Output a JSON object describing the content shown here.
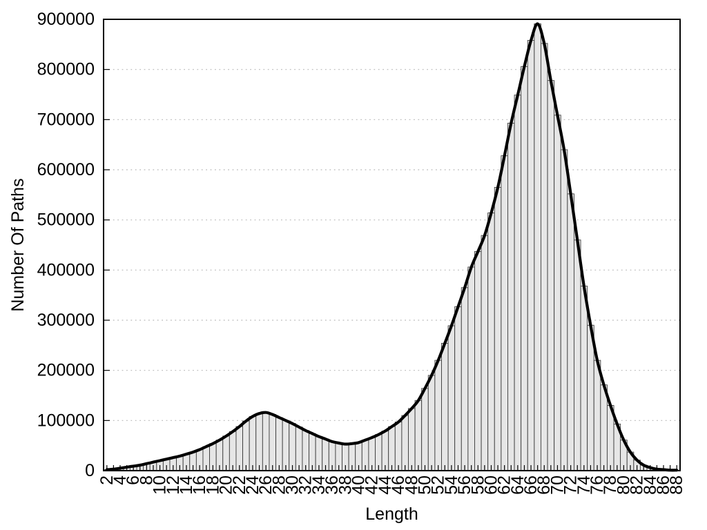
{
  "chart_data": {
    "type": "bar",
    "title": "",
    "xlabel": "Length",
    "ylabel": "Number Of Paths",
    "x_range": [
      1.5,
      88.5
    ],
    "ylim": [
      0,
      900000
    ],
    "ytick_step": 100000,
    "ytick_labels": [
      "0",
      "100000",
      "200000",
      "300000",
      "400000",
      "500000",
      "600000",
      "700000",
      "800000",
      "900000"
    ],
    "xtick_label_step": 2,
    "grid": "horizontal dotted gridlines at each 100000",
    "legend_position": "none",
    "overlay": {
      "type": "line",
      "smooth": true,
      "note": "thick black smoothed curve through the same values as the bars"
    },
    "colors": {
      "bar_fill": "#e6e6e6",
      "bar_stroke": "#3a3a3a",
      "curve": "#000000",
      "grid": "#b8b8b8",
      "frame": "#000000"
    },
    "x": [
      2,
      3,
      4,
      5,
      6,
      7,
      8,
      9,
      10,
      11,
      12,
      13,
      14,
      15,
      16,
      17,
      18,
      19,
      20,
      21,
      22,
      23,
      24,
      25,
      26,
      27,
      28,
      29,
      30,
      31,
      32,
      33,
      34,
      35,
      36,
      37,
      38,
      39,
      40,
      41,
      42,
      43,
      44,
      45,
      46,
      47,
      48,
      49,
      50,
      51,
      52,
      53,
      54,
      55,
      56,
      57,
      58,
      59,
      60,
      61,
      62,
      63,
      64,
      65,
      66,
      67,
      68,
      69,
      70,
      71,
      72,
      73,
      74,
      75,
      76,
      77,
      78,
      79,
      80,
      81,
      82,
      83,
      84,
      85,
      86,
      87,
      88
    ],
    "values": [
      2000,
      3000,
      5000,
      7000,
      9000,
      11000,
      14000,
      17000,
      20000,
      23000,
      26000,
      29000,
      33000,
      37000,
      42000,
      48000,
      54000,
      61000,
      69000,
      78000,
      88000,
      99000,
      108000,
      114000,
      116000,
      112000,
      106000,
      100000,
      94000,
      87000,
      80000,
      74000,
      68000,
      63000,
      58000,
      55000,
      53000,
      54000,
      56000,
      61000,
      66000,
      72000,
      79000,
      88000,
      97000,
      110000,
      124000,
      140000,
      164000,
      190000,
      220000,
      254000,
      289000,
      327000,
      365000,
      406000,
      437000,
      469000,
      514000,
      565000,
      628000,
      693000,
      749000,
      806000,
      858000,
      891000,
      852000,
      778000,
      709000,
      640000,
      552000,
      460000,
      368000,
      290000,
      220000,
      171000,
      130000,
      93000,
      61000,
      37000,
      21000,
      11000,
      6000,
      3000,
      2000,
      1000,
      1000
    ]
  }
}
